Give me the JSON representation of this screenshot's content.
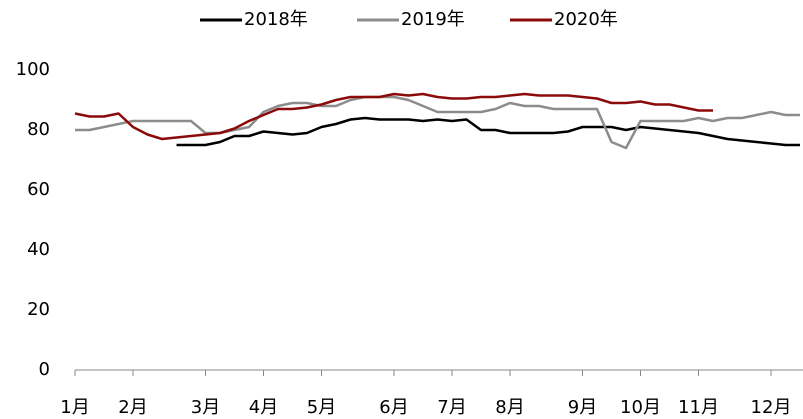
{
  "chart_data": {
    "type": "line",
    "categories": [
      "1月",
      null,
      null,
      null,
      "2月",
      null,
      null,
      null,
      null,
      "3月",
      null,
      null,
      null,
      "4月",
      null,
      null,
      null,
      "5月",
      null,
      null,
      null,
      null,
      "6月",
      null,
      null,
      null,
      "7月",
      null,
      null,
      null,
      "8月",
      null,
      null,
      null,
      null,
      "9月",
      null,
      null,
      null,
      "10月",
      null,
      null,
      null,
      "11月",
      null,
      null,
      null,
      null,
      "12月",
      null,
      null
    ],
    "series": [
      {
        "name": "2018年",
        "color": "#000000",
        "values": [
          null,
          null,
          null,
          null,
          null,
          null,
          null,
          75,
          75,
          75,
          76,
          78,
          78,
          79.5,
          79,
          78.5,
          79,
          81,
          82,
          83.5,
          84,
          83.5,
          83.5,
          83.5,
          83,
          83.5,
          83,
          83.5,
          80,
          80,
          79,
          79,
          79,
          79,
          79.5,
          81,
          81,
          81,
          80,
          81,
          80.5,
          80,
          79.5,
          79,
          78,
          77,
          76.5,
          76,
          75.5,
          75,
          75
        ]
      },
      {
        "name": "2019年",
        "color": "#8c8c8c",
        "values": [
          80,
          80,
          81,
          82,
          83,
          83,
          83,
          83,
          83,
          79,
          79,
          80,
          81,
          86,
          88,
          89,
          89,
          88,
          88,
          90,
          91,
          91,
          91,
          90,
          88,
          86,
          86,
          86,
          86,
          87,
          89,
          88,
          88,
          87,
          87,
          87,
          87,
          76,
          74,
          83,
          83,
          83,
          83,
          84,
          83,
          84,
          84,
          85,
          86,
          85,
          85
        ]
      },
      {
        "name": "2020年",
        "color": "#8b0a0a",
        "values": [
          85.5,
          84.5,
          84.5,
          85.5,
          81,
          78.5,
          77,
          77.5,
          78,
          78.5,
          79,
          80.5,
          83,
          85,
          87,
          87,
          87.5,
          88.5,
          90,
          91,
          91,
          91,
          92,
          91.5,
          92,
          91,
          90.5,
          90.5,
          91,
          91,
          91.5,
          92,
          91.5,
          91.5,
          91.5,
          91,
          90.5,
          89,
          89,
          89.5,
          88.5,
          88.5,
          87.5,
          86.5,
          86.5,
          null,
          null,
          null,
          null,
          null,
          null
        ]
      }
    ],
    "ylim": [
      0,
      100
    ],
    "yticks": [
      0,
      20,
      40,
      60,
      80,
      100
    ],
    "grid": false
  }
}
